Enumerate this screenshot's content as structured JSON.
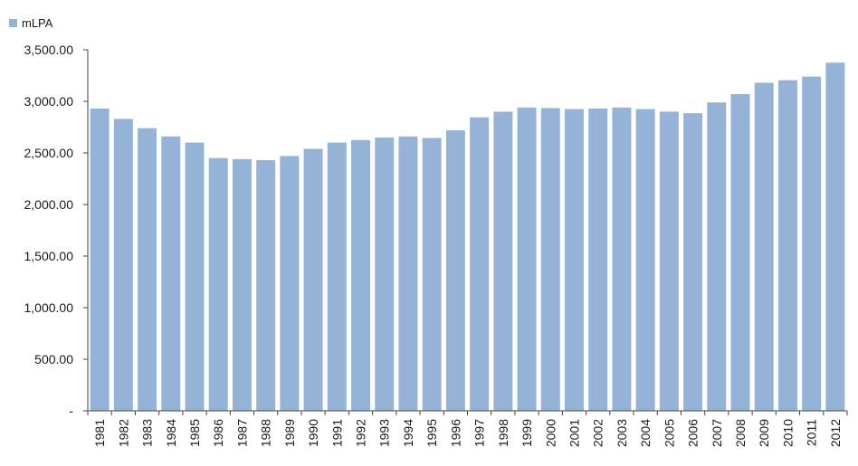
{
  "chart_data": {
    "type": "bar",
    "categories": [
      "1981",
      "1982",
      "1983",
      "1984",
      "1985",
      "1986",
      "1987",
      "1988",
      "1989",
      "1990",
      "1991",
      "1992",
      "1993",
      "1994",
      "1995",
      "1996",
      "1997",
      "1998",
      "1999",
      "2000",
      "2001",
      "2002",
      "2003",
      "2004",
      "2005",
      "2006",
      "2007",
      "2008",
      "2009",
      "2010",
      "2011",
      "2012"
    ],
    "series": [
      {
        "name": "mLPA",
        "color": "#95b3d7",
        "values": [
          2930,
          2830,
          2740,
          2660,
          2600,
          2450,
          2440,
          2430,
          2470,
          2540,
          2600,
          2625,
          2650,
          2660,
          2645,
          2720,
          2845,
          2900,
          2940,
          2935,
          2925,
          2930,
          2940,
          2925,
          2900,
          2885,
          2990,
          3070,
          3180,
          3205,
          3240,
          3375
        ]
      }
    ],
    "ylim": [
      0,
      3500
    ],
    "yticks": [
      0,
      500,
      1000,
      1500,
      2000,
      2500,
      3000,
      3500
    ],
    "ytick_labels": [
      "-",
      "500.00",
      "1,000.00",
      "1,500.00",
      "2,000.00",
      "2,500.00",
      "3,000.00",
      "3,500.00"
    ],
    "legend_position": "top-left",
    "grid": false,
    "title": "",
    "xlabel": "",
    "ylabel": ""
  }
}
